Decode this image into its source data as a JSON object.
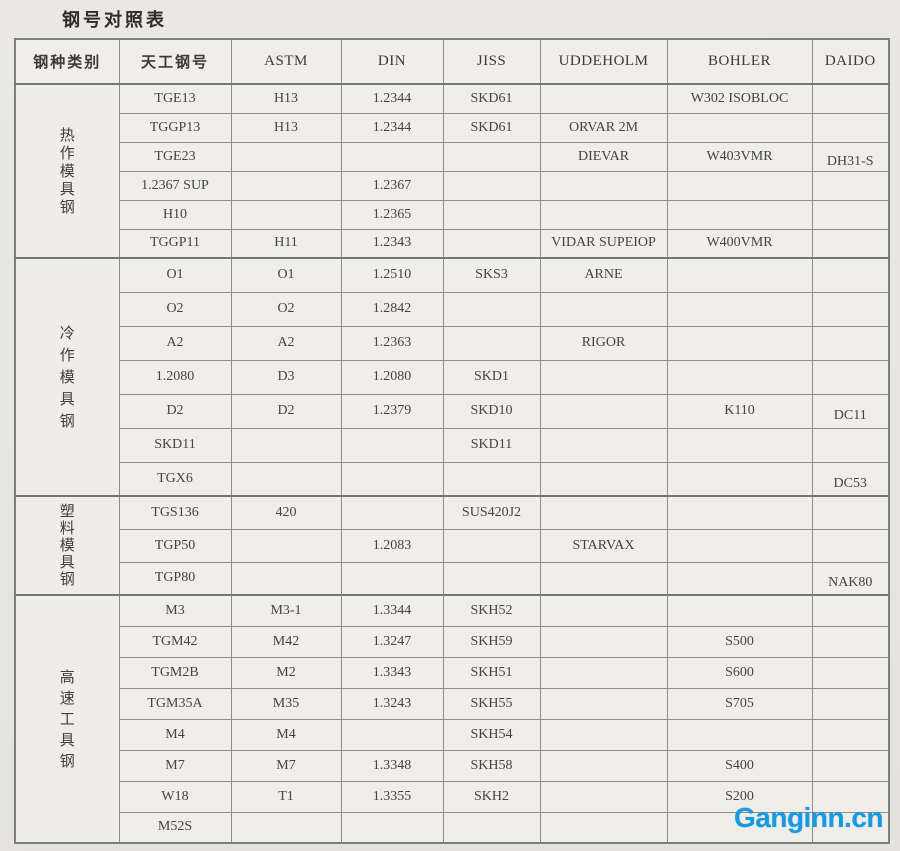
{
  "page": {
    "title": "钢号对照表",
    "watermark": "Ganginn.cn",
    "watermark_color": "#189ae2"
  },
  "table": {
    "headers": [
      "钢种类别",
      "天工钢号",
      "ASTM",
      "DIN",
      "JISS",
      "UDDEHOLM",
      "BOHLER",
      "DAIDO"
    ],
    "sections": [
      {
        "category": "热作模具钢",
        "rows": [
          [
            "TGE13",
            "H13",
            "1.2344",
            "SKD61",
            "",
            "W302 ISOBLOC",
            ""
          ],
          [
            "TGGP13",
            "H13",
            "1.2344",
            "SKD61",
            "ORVAR 2M",
            "",
            ""
          ],
          [
            "TGE23",
            "",
            "",
            "",
            "DIEVAR",
            "W403VMR",
            "DH31-S"
          ],
          [
            "1.2367 SUP",
            "",
            "1.2367",
            "",
            "",
            "",
            ""
          ],
          [
            "H10",
            "",
            "1.2365",
            "",
            "",
            "",
            ""
          ],
          [
            "TGGP11",
            "H11",
            "1.2343",
            "",
            "VIDAR SUPEIOP",
            "W400VMR",
            ""
          ]
        ]
      },
      {
        "category": "冷作模具钢",
        "rows": [
          [
            "O1",
            "O1",
            "1.2510",
            "SKS3",
            "ARNE",
            "",
            ""
          ],
          [
            "O2",
            "O2",
            "1.2842",
            "",
            "",
            "",
            ""
          ],
          [
            "A2",
            "A2",
            "1.2363",
            "",
            "RIGOR",
            "",
            ""
          ],
          [
            "1.2080",
            "D3",
            "1.2080",
            "SKD1",
            "",
            "",
            ""
          ],
          [
            "D2",
            "D2",
            "1.2379",
            "SKD10",
            "",
            "K110",
            "DC11"
          ],
          [
            "SKD11",
            "",
            "",
            "SKD11",
            "",
            "",
            ""
          ],
          [
            "TGX6",
            "",
            "",
            "",
            "",
            "",
            "DC53"
          ]
        ]
      },
      {
        "category": "塑料模具钢",
        "rows": [
          [
            "TGS136",
            "420",
            "",
            "SUS420J2",
            "",
            "",
            ""
          ],
          [
            "TGP50",
            "",
            "1.2083",
            "",
            "STARVAX",
            "",
            ""
          ],
          [
            "TGP80",
            "",
            "",
            "",
            "",
            "",
            "NAK80"
          ]
        ]
      },
      {
        "category": "高速工具钢",
        "rows": [
          [
            "M3",
            "M3-1",
            "1.3344",
            "SKH52",
            "",
            "",
            ""
          ],
          [
            "TGM42",
            "M42",
            "1.3247",
            "SKH59",
            "",
            "S500",
            ""
          ],
          [
            "TGM2B",
            "M2",
            "1.3343",
            "SKH51",
            "",
            "S600",
            ""
          ],
          [
            "TGM35A",
            "M35",
            "1.3243",
            "SKH55",
            "",
            "S705",
            ""
          ],
          [
            "M4",
            "M4",
            "",
            "SKH54",
            "",
            "",
            ""
          ],
          [
            "M7",
            "M7",
            "1.3348",
            "SKH58",
            "",
            "S400",
            ""
          ],
          [
            "W18",
            "T1",
            "1.3355",
            "SKH2",
            "",
            "S200",
            ""
          ],
          [
            "M52S",
            "",
            "",
            "",
            "",
            "",
            ""
          ]
        ]
      }
    ]
  }
}
